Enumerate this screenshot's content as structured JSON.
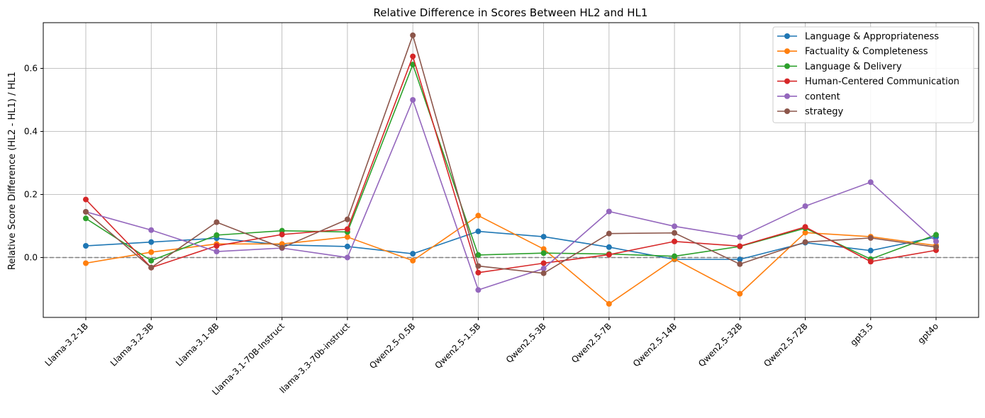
{
  "chart_data": {
    "type": "line",
    "title": "Relative Difference in Scores Between HL2 and HL1",
    "xlabel": "",
    "ylabel": "Relative Score Difference (HL2 - HL1) / HL1",
    "ylim": [
      -0.19,
      0.745
    ],
    "yticks": [
      0.0,
      0.2,
      0.4,
      0.6
    ],
    "ytick_labels": [
      "0.0",
      "0.2",
      "0.4",
      "0.6"
    ],
    "grid": true,
    "reference_line": 0,
    "legend_position": "top-right",
    "categories": [
      "Llama-3.2-1B",
      "Llama-3.2-3B",
      "Llama-3.1-8B",
      "Llama-3.1-70B-Instruct",
      "llama-3.3-70b-instruct",
      "Qwen2.5-0.5B",
      "Qwen2.5-1.5B",
      "Qwen2.5-3B",
      "Qwen2.5-7B",
      "Qwen2.5-14B",
      "Qwen2.5-32B",
      "Qwen2.5-72B",
      "gpt3.5",
      "gpt4o"
    ],
    "series": [
      {
        "name": "Language & Appropriateness",
        "color": "#1f77b4",
        "values": [
          0.037,
          0.049,
          0.061,
          0.04,
          0.035,
          0.012,
          0.083,
          0.066,
          0.033,
          -0.006,
          -0.006,
          0.047,
          0.022,
          0.065
        ]
      },
      {
        "name": "Factuality & Completeness",
        "color": "#ff7f0e",
        "values": [
          -0.018,
          0.017,
          0.043,
          0.043,
          0.065,
          -0.01,
          0.133,
          0.027,
          -0.147,
          -0.005,
          -0.115,
          0.079,
          0.066,
          0.038
        ]
      },
      {
        "name": "Language & Delivery",
        "color": "#2ca02c",
        "values": [
          0.124,
          -0.01,
          0.071,
          0.085,
          0.081,
          0.612,
          0.008,
          0.014,
          0.011,
          0.004,
          0.035,
          0.093,
          -0.005,
          0.072
        ]
      },
      {
        "name": "Human-Centered Communication",
        "color": "#d62728",
        "values": [
          0.184,
          -0.032,
          0.037,
          0.073,
          0.09,
          0.638,
          -0.048,
          -0.018,
          0.009,
          0.051,
          0.036,
          0.097,
          -0.013,
          0.023
        ]
      },
      {
        "name": "content",
        "color": "#9467bd",
        "values": [
          0.145,
          0.087,
          0.019,
          0.03,
          0.0,
          0.5,
          -0.103,
          -0.035,
          0.146,
          0.099,
          0.065,
          0.163,
          0.239,
          0.051
        ]
      },
      {
        "name": "strategy",
        "color": "#8c564b",
        "values": [
          0.145,
          -0.032,
          0.112,
          0.031,
          0.121,
          0.705,
          -0.027,
          -0.05,
          0.076,
          0.078,
          -0.021,
          0.049,
          0.062,
          0.033
        ]
      }
    ]
  }
}
